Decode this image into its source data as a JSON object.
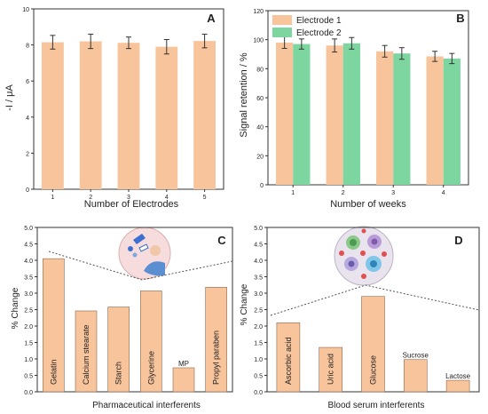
{
  "colors": {
    "bar_orange": "#F8C49C",
    "bar_orange_edge": "#8a6a50",
    "bar_green": "#7DD6A0",
    "axis": "#333333",
    "dotted_line": "#555555",
    "icon_circle_C": "#F6DCDC",
    "icon_circle_D": "#E9E3EE"
  },
  "chart_data": [
    {
      "panel": "A",
      "type": "bar",
      "categories": [
        "1",
        "2",
        "3",
        "4",
        "5"
      ],
      "values": [
        8.15,
        8.2,
        8.12,
        7.9,
        8.22
      ],
      "errors": [
        0.38,
        0.4,
        0.32,
        0.4,
        0.38
      ],
      "xlabel": "Number of Electrodes",
      "ylabel": "-I / μA",
      "ylim": [
        0,
        10
      ],
      "yticks": [
        "0",
        "2",
        "4",
        "6",
        "8",
        "10"
      ],
      "grid": false
    },
    {
      "panel": "B",
      "type": "bar",
      "categories": [
        "1",
        "2",
        "3",
        "4"
      ],
      "series": [
        {
          "name": "Electrode 1",
          "values": [
            98,
            96,
            92,
            88.5
          ],
          "errors": [
            4,
            4.5,
            4,
            3.5
          ]
        },
        {
          "name": "Electrode 2",
          "values": [
            97,
            97.5,
            90.5,
            87
          ],
          "errors": [
            3.5,
            4,
            4,
            3.5
          ]
        }
      ],
      "xlabel": "Number of weeks",
      "ylabel": "Signal retention / %",
      "ylim": [
        0,
        120
      ],
      "yticks": [
        "0",
        "20",
        "40",
        "60",
        "80",
        "100",
        "120"
      ],
      "legend": "top-left",
      "grid": false
    },
    {
      "panel": "C",
      "type": "bar",
      "categories": [
        "Gelatin",
        "Calcium stearate",
        "Starch",
        "Glycerine",
        "MP",
        "Propyl paraben"
      ],
      "values": [
        4.05,
        2.46,
        2.58,
        3.07,
        0.73,
        3.18
      ],
      "xlabel": "Pharmaceutical interferents",
      "ylabel": "% Change",
      "ylim": [
        0,
        5
      ],
      "yticks": [
        "0.0",
        "0.5",
        "1.0",
        "1.5",
        "2.0",
        "2.5",
        "3.0",
        "3.5",
        "4.0",
        "4.5",
        "5.0"
      ],
      "grid": false
    },
    {
      "panel": "D",
      "type": "bar",
      "categories": [
        "Ascorbic acid",
        "Uric acid",
        "Glucose",
        "Sucrose",
        "Lactose"
      ],
      "values": [
        2.1,
        1.35,
        2.9,
        0.98,
        0.35
      ],
      "xlabel": "Blood serum interferents",
      "ylabel": "% Change",
      "ylim": [
        0,
        5
      ],
      "yticks": [
        "0.0",
        "0.5",
        "1.0",
        "1.5",
        "2.0",
        "2.5",
        "3.0",
        "3.5",
        "4.0",
        "4.5",
        "5.0"
      ],
      "grid": false
    }
  ]
}
